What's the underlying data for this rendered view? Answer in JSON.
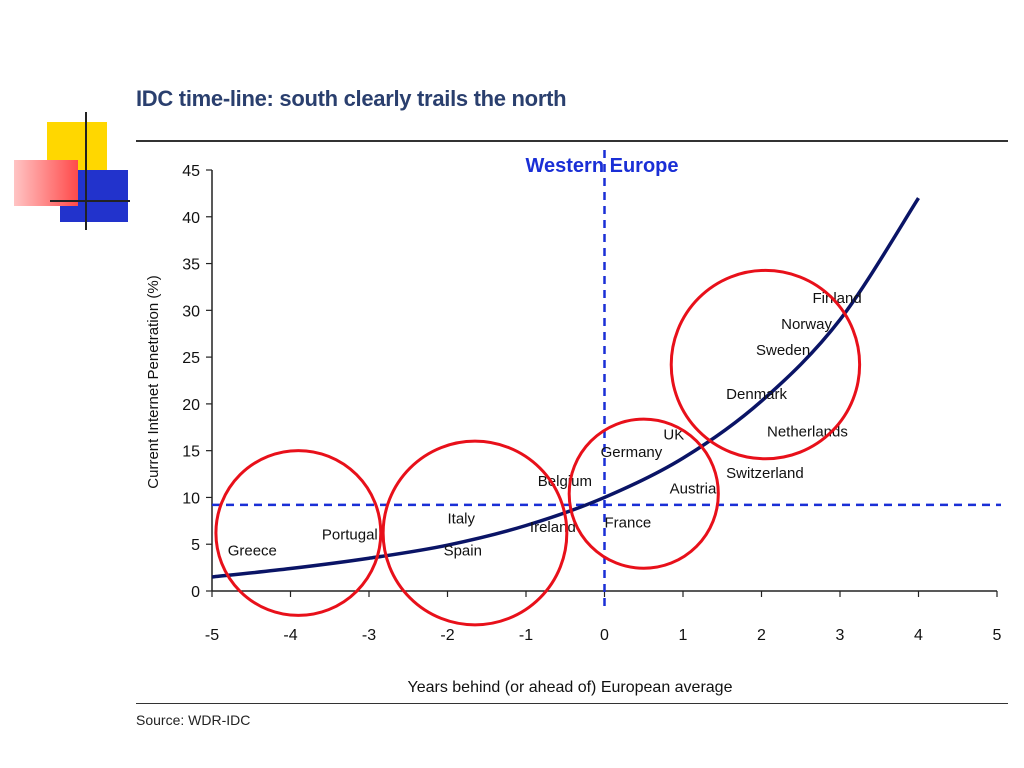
{
  "slide": {
    "title": "IDC time-line: south clearly trails the north",
    "source": "Source: WDR-IDC",
    "colors": {
      "title": "#2a3f6e",
      "curve": "#0a1466",
      "dashed": "#1a2fd6",
      "circle": "#e8101a",
      "deco_yellow": "#ffd700",
      "deco_blue": "#2233cc",
      "deco_red": "#ff5a5a"
    }
  },
  "chart_data": {
    "type": "line",
    "title": "Western Europe",
    "xlabel": "Years behind (or ahead of) European average",
    "ylabel": "Current Internet Penetration (%)",
    "xlim": [
      -5,
      5
    ],
    "ylim": [
      0,
      45
    ],
    "x_ticks": [
      -5,
      -4,
      -3,
      -2,
      -1,
      0,
      1,
      2,
      3,
      4,
      5
    ],
    "y_ticks": [
      0,
      5,
      10,
      15,
      20,
      25,
      30,
      35,
      40,
      45
    ],
    "series": [
      {
        "x": [
          -5,
          -4,
          -3,
          -2,
          -1,
          0,
          1,
          2,
          3,
          4
        ],
        "y": [
          1.5,
          2.4,
          3.5,
          4.9,
          7.0,
          10.0,
          14.2,
          20.3,
          29.0,
          42.0
        ]
      }
    ],
    "reference_lines": [
      {
        "axis": "x",
        "value": 0
      },
      {
        "axis": "y",
        "value": 9.2
      }
    ],
    "point_labels": [
      {
        "text": "Greece",
        "x": -4.8,
        "y": 3.8
      },
      {
        "text": "Portugal",
        "x": -3.6,
        "y": 5.5
      },
      {
        "text": "Italy",
        "x": -2.0,
        "y": 7.2
      },
      {
        "text": "Spain",
        "x": -2.05,
        "y": 3.8
      },
      {
        "text": "Ireland",
        "x": -0.95,
        "y": 6.3
      },
      {
        "text": "Belgium",
        "x": -0.85,
        "y": 11.2
      },
      {
        "text": "Germany",
        "x": -0.05,
        "y": 14.3
      },
      {
        "text": "France",
        "x": 0.0,
        "y": 6.8
      },
      {
        "text": "UK",
        "x": 0.75,
        "y": 16.2
      },
      {
        "text": "Austria",
        "x": 0.83,
        "y": 10.4
      },
      {
        "text": "Switzerland",
        "x": 1.55,
        "y": 12.1
      },
      {
        "text": "Netherlands",
        "x": 2.07,
        "y": 16.5
      },
      {
        "text": "Denmark",
        "x": 1.55,
        "y": 20.5
      },
      {
        "text": "Sweden",
        "x": 1.93,
        "y": 25.2
      },
      {
        "text": "Norway",
        "x": 2.25,
        "y": 28.0
      },
      {
        "text": "Finland",
        "x": 2.65,
        "y": 30.8
      }
    ],
    "highlight_groups": [
      {
        "cx": -3.9,
        "cy": 6.2,
        "r_x": 1.05
      },
      {
        "cx": -1.65,
        "cy": 6.2,
        "r_x": 1.17
      },
      {
        "cx": 0.5,
        "cy": 10.4,
        "r_x": 0.95
      },
      {
        "cx": 2.05,
        "cy": 24.2,
        "r_x": 1.2
      }
    ]
  }
}
